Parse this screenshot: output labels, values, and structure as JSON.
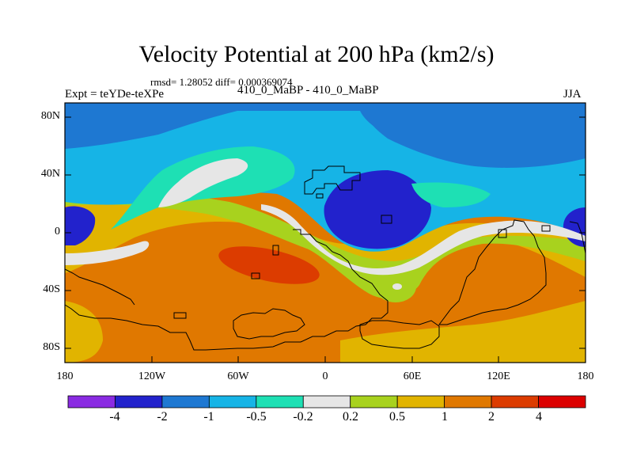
{
  "title": "Velocity Potential at 200 hPa (km2/s)",
  "stats": "rmsd= 1.28052 diff= 0.000369074",
  "experiment": "Expt = teYDe-teXPe",
  "center_label": "410_0_MaBP - 410_0_MaBP",
  "season": "JJA",
  "map": {
    "y_ticks": [
      {
        "label": "80N",
        "lat": 80
      },
      {
        "label": "40N",
        "lat": 40
      },
      {
        "label": "0",
        "lat": 0
      },
      {
        "label": "40S",
        "lat": -40
      },
      {
        "label": "80S",
        "lat": -80
      }
    ],
    "x_ticks": [
      {
        "label": "180",
        "lon": -180
      },
      {
        "label": "120W",
        "lon": -120
      },
      {
        "label": "60W",
        "lon": -60
      },
      {
        "label": "0",
        "lon": 0
      },
      {
        "label": "60E",
        "lon": 60
      },
      {
        "label": "120E",
        "lon": 120
      },
      {
        "label": "180",
        "lon": 180
      }
    ]
  },
  "colorbar": {
    "colors": [
      "#8a2be2",
      "#2222cc",
      "#1e78d2",
      "#16b4e6",
      "#1ee0b4",
      "#e6e6e6",
      "#a8d21e",
      "#e1b400",
      "#e07800",
      "#dc3c00",
      "#dc0000"
    ],
    "labels": [
      "-4",
      "-2",
      "-1",
      "-0.5",
      "-0.2",
      "0.2",
      "0.5",
      "1",
      "2",
      "4"
    ]
  }
}
